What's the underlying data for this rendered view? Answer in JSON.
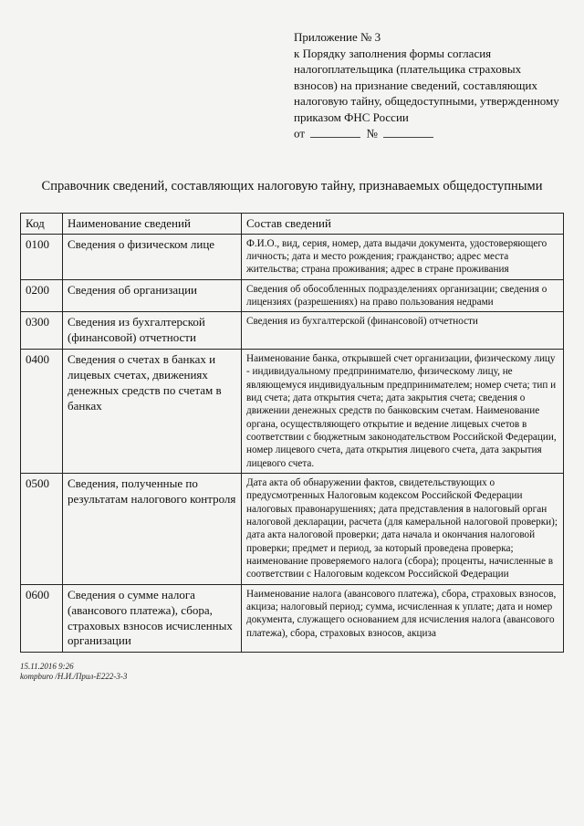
{
  "header": {
    "l1": "Приложение № 3",
    "l2": "к Порядку заполнения формы согласия налогоплательщика (плательщика страховых взносов) на признание сведений, составляющих налоговую тайну, общедоступными, утвержденному приказом ФНС России",
    "from_label": "от",
    "no_label": "№"
  },
  "title": "Справочник сведений, составляющих налоговую тайну, признаваемых общедоступными",
  "columns": {
    "c0": "Код",
    "c1": "Наименование сведений",
    "c2": "Состав сведений"
  },
  "rows": [
    {
      "code": "0100",
      "name": "Сведения о физическом лице",
      "comp": "Ф.И.О., вид, серия, номер, дата выдачи документа, удостоверяющего личность; дата и место рождения; гражданство; адрес места жительства; страна проживания; адрес в стране проживания"
    },
    {
      "code": "0200",
      "name": "Сведения об организации",
      "comp": "Сведения об обособленных подразделениях организации; сведения о лицензиях (разрешениях) на право пользования недрами"
    },
    {
      "code": "0300",
      "name": "Сведения из бухгалтерской (финансовой) отчетности",
      "comp": "Сведения из бухгалтерской (финансовой) отчетности"
    },
    {
      "code": "0400",
      "name": "Сведения о счетах в банках и лицевых счетах, движениях денежных средств по счетам в банках",
      "comp": "Наименование банка, открывшей счет организации, физическому лицу - индивидуальному предпринимателю, физическому лицу, не являющемуся индивидуальным предпринимателем; номер счета; тип и вид счета; дата открытия счета; дата закрытия счета; сведения о движении денежных средств по банковским счетам. Наименование органа, осуществляющего открытие и ведение лицевых счетов в соответствии с бюджетным законодательством Российской Федерации, номер лицевого счета, дата открытия лицевого счета, дата закрытия лицевого счета."
    },
    {
      "code": "0500",
      "name": "Сведения, полученные по результатам налогового контроля",
      "comp": "Дата акта об обнаружении фактов, свидетельствующих о предусмотренных Налоговым кодексом Российской Федерации налоговых правонарушениях; дата представления в налоговый орган налоговой декларации, расчета (для камеральной налоговой проверки); дата акта налоговой проверки; дата начала и окончания налоговой проверки; предмет и период, за который проведена проверка; наименование проверяемого налога (сбора); проценты, начисленные в соответствии с Налоговым кодексом Российской Федерации"
    },
    {
      "code": "0600",
      "name": "Сведения о сумме налога (авансового платежа), сбора, страховых взносов исчисленных организации",
      "comp": "Наименование налога (авансового платежа), сбора, страховых взносов, акциза; налоговый период; сумма, исчисленная к уплате; дата и номер документа, служащего основанием для исчисления налога (авансового платежа), сбора, страховых взносов, акциза"
    }
  ],
  "footer": {
    "l1": "15.11.2016 9:26",
    "l2": "kompburo /Н.И./Прил-Е222-3-3"
  }
}
